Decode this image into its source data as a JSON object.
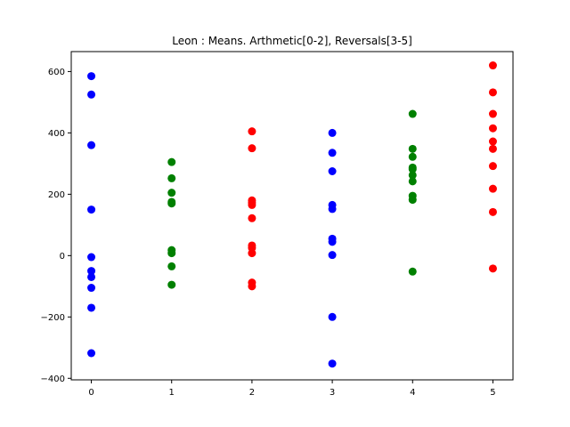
{
  "chart_data": {
    "type": "scatter",
    "title": "Leon : Means. Arthmetic[0-2], Reversals[3-5]",
    "xlabel": "",
    "ylabel": "",
    "xlim": [
      -0.25,
      5.25
    ],
    "ylim": [
      -405,
      665
    ],
    "xticks": [
      0,
      1,
      2,
      3,
      4,
      5
    ],
    "yticks": [
      -400,
      -200,
      0,
      200,
      400,
      600
    ],
    "grid": false,
    "legend": "none",
    "series": [
      {
        "color": "#0000ff",
        "x": 0,
        "values": [
          585,
          525,
          360,
          150,
          -5,
          -50,
          -70,
          -105,
          -170,
          -318
        ]
      },
      {
        "color": "#008000",
        "x": 1,
        "values": [
          305,
          252,
          205,
          175,
          170,
          18,
          8,
          -35,
          -95
        ]
      },
      {
        "color": "#ff0000",
        "x": 2,
        "values": [
          405,
          350,
          180,
          172,
          165,
          122,
          33,
          25,
          8,
          -88,
          -100
        ]
      },
      {
        "color": "#0000ff",
        "x": 3,
        "values": [
          400,
          335,
          275,
          165,
          152,
          55,
          45,
          2,
          -200,
          -352
        ]
      },
      {
        "color": "#008000",
        "x": 4,
        "values": [
          462,
          348,
          322,
          287,
          282,
          262,
          242,
          195,
          182,
          -52
        ]
      },
      {
        "color": "#ff0000",
        "x": 5,
        "values": [
          620,
          532,
          462,
          415,
          372,
          348,
          292,
          218,
          142,
          -42
        ]
      }
    ]
  }
}
